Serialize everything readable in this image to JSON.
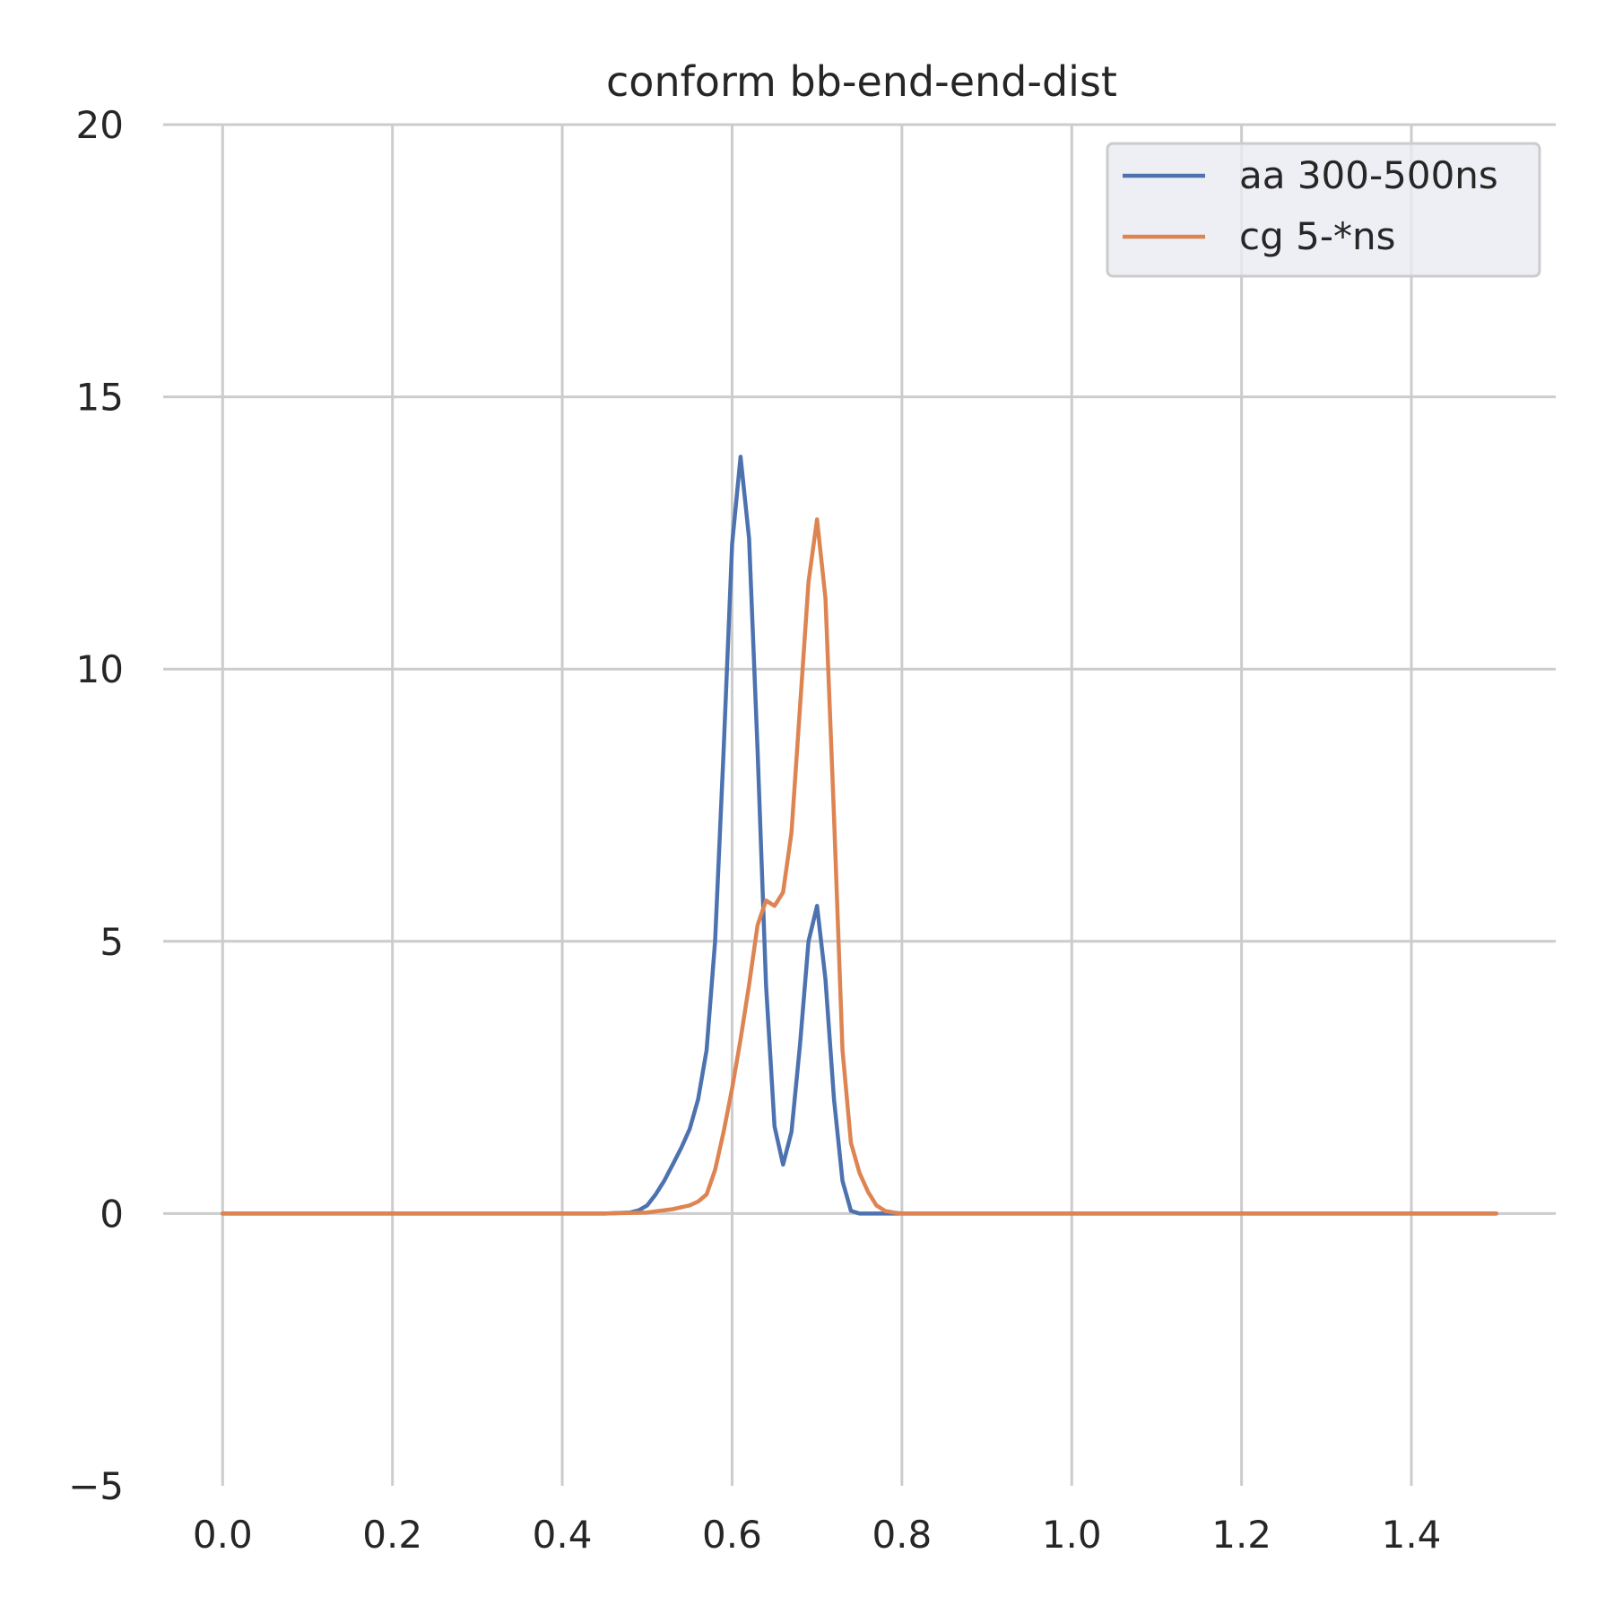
{
  "chart_data": {
    "type": "line",
    "title": "conform bb-end-end-dist",
    "xlabel": "",
    "ylabel": "",
    "xlim": [
      -0.07,
      1.57
    ],
    "ylim": [
      -5,
      20
    ],
    "x_ticks": [
      0.0,
      0.2,
      0.4,
      0.6,
      0.8,
      1.0,
      1.2,
      1.4
    ],
    "x_tick_labels": [
      "0.0",
      "0.2",
      "0.4",
      "0.6",
      "0.8",
      "1.0",
      "1.2",
      "1.4"
    ],
    "y_ticks": [
      -5,
      0,
      5,
      10,
      15,
      20
    ],
    "y_tick_labels": [
      "−5",
      "0",
      "5",
      "10",
      "15",
      "20"
    ],
    "grid": true,
    "legend_position": "top-right",
    "series": [
      {
        "name": "aa 300-500ns",
        "color": "#4c72b0",
        "x": [
          0.0,
          0.45,
          0.48,
          0.49,
          0.5,
          0.51,
          0.52,
          0.53,
          0.54,
          0.55,
          0.56,
          0.57,
          0.58,
          0.59,
          0.6,
          0.61,
          0.62,
          0.63,
          0.64,
          0.65,
          0.66,
          0.67,
          0.68,
          0.69,
          0.7,
          0.71,
          0.72,
          0.73,
          0.74,
          0.75,
          0.76,
          0.8,
          1.5
        ],
        "y": [
          0.0,
          0.0,
          0.02,
          0.06,
          0.15,
          0.35,
          0.6,
          0.9,
          1.2,
          1.55,
          2.1,
          3.0,
          5.0,
          8.5,
          12.3,
          13.9,
          12.4,
          8.5,
          4.2,
          1.6,
          0.9,
          1.5,
          3.1,
          5.0,
          5.65,
          4.3,
          2.1,
          0.6,
          0.05,
          0.0,
          0.0,
          0.0,
          0.0
        ]
      },
      {
        "name": "cg 5-*ns",
        "color": "#dd8452",
        "x": [
          0.0,
          0.45,
          0.5,
          0.53,
          0.55,
          0.56,
          0.57,
          0.58,
          0.59,
          0.6,
          0.61,
          0.62,
          0.63,
          0.64,
          0.65,
          0.66,
          0.67,
          0.68,
          0.69,
          0.7,
          0.71,
          0.72,
          0.73,
          0.74,
          0.75,
          0.76,
          0.77,
          0.78,
          0.79,
          0.8,
          0.82,
          1.5
        ],
        "y": [
          0.0,
          0.0,
          0.02,
          0.08,
          0.15,
          0.22,
          0.35,
          0.8,
          1.5,
          2.3,
          3.2,
          4.2,
          5.3,
          5.75,
          5.65,
          5.9,
          7.0,
          9.3,
          11.6,
          12.75,
          11.3,
          7.3,
          3.0,
          1.3,
          0.75,
          0.4,
          0.15,
          0.05,
          0.02,
          0.0,
          0.0,
          0.0
        ]
      }
    ]
  }
}
